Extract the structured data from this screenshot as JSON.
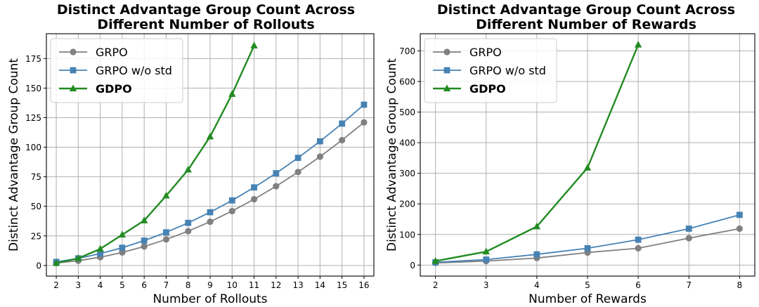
{
  "colors": {
    "grpo": "#808080",
    "grpo_wo_std": "#4682b4",
    "gdpo": "#228b22"
  },
  "chart_data": [
    {
      "type": "line",
      "title": [
        "Distinct Advantage Group Count Across",
        "Different Number of Rollouts"
      ],
      "xlabel": "Number of Rollouts",
      "ylabel": "Distinct Advantage Group Count",
      "xlim": [
        1.55,
        16.45
      ],
      "ylim": [
        -9,
        196
      ],
      "xticks": [
        2,
        3,
        4,
        5,
        6,
        7,
        8,
        9,
        10,
        11,
        12,
        13,
        14,
        15,
        16
      ],
      "yticks": [
        0,
        25,
        50,
        75,
        100,
        125,
        150,
        175
      ],
      "legend_position": "top-left",
      "series": [
        {
          "name": "GRPO",
          "marker": "circle",
          "bold": false,
          "color_key": "grpo",
          "x": [
            2,
            3,
            4,
            5,
            6,
            7,
            8,
            9,
            10,
            11,
            12,
            13,
            14,
            15,
            16
          ],
          "values": [
            2,
            4,
            7,
            11,
            16,
            22,
            29,
            37,
            46,
            56,
            67,
            79,
            92,
            106,
            121
          ]
        },
        {
          "name": "GRPO w/o std",
          "marker": "square",
          "bold": false,
          "color_key": "grpo_wo_std",
          "x": [
            2,
            3,
            4,
            5,
            6,
            7,
            8,
            9,
            10,
            11,
            12,
            13,
            14,
            15,
            16
          ],
          "values": [
            3,
            6,
            10,
            15,
            21,
            28,
            36,
            45,
            55,
            66,
            78,
            91,
            105,
            120,
            136
          ]
        },
        {
          "name": "GDPO",
          "marker": "triangle",
          "bold": true,
          "color_key": "gdpo",
          "x": [
            2,
            3,
            4,
            5,
            6,
            7,
            8,
            9,
            10,
            11
          ],
          "values": [
            2,
            6,
            14,
            26,
            38,
            59,
            81,
            109,
            145,
            186
          ]
        }
      ]
    },
    {
      "type": "line",
      "title": [
        "Distinct Advantage Group Count Across",
        "Different Number of Rewards"
      ],
      "xlabel": "Number of Rewards",
      "ylabel": "Distinct Advantage Group Count",
      "xlim": [
        1.7,
        8.3
      ],
      "ylim": [
        -36,
        756
      ],
      "xticks": [
        2,
        3,
        4,
        5,
        6,
        7,
        8
      ],
      "yticks": [
        0,
        100,
        200,
        300,
        400,
        500,
        600,
        700
      ],
      "legend_position": "top-left",
      "series": [
        {
          "name": "GRPO",
          "marker": "circle",
          "bold": false,
          "color_key": "grpo",
          "x": [
            2,
            3,
            4,
            5,
            6,
            7,
            8
          ],
          "values": [
            7,
            13,
            23,
            41,
            55,
            88,
            119
          ]
        },
        {
          "name": "GRPO w/o std",
          "marker": "square",
          "bold": false,
          "color_key": "grpo_wo_std",
          "x": [
            2,
            3,
            4,
            5,
            6,
            7,
            8
          ],
          "values": [
            9,
            18,
            35,
            55,
            83,
            119,
            164
          ]
        },
        {
          "name": "GDPO",
          "marker": "triangle",
          "bold": true,
          "color_key": "gdpo",
          "x": [
            2,
            3,
            4,
            5,
            6
          ],
          "values": [
            13,
            44,
            126,
            318,
            720
          ]
        }
      ]
    }
  ]
}
